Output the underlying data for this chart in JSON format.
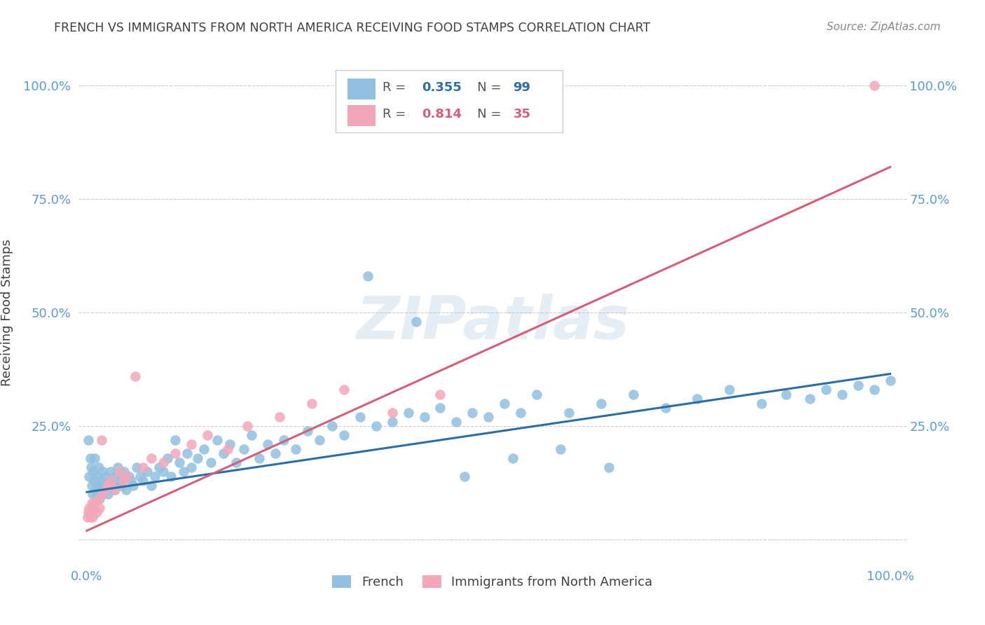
{
  "title": "FRENCH VS IMMIGRANTS FROM NORTH AMERICA RECEIVING FOOD STAMPS CORRELATION CHART",
  "source": "Source: ZipAtlas.com",
  "ylabel": "Receiving Food Stamps",
  "watermark": "ZIPatlas",
  "blue_R": 0.355,
  "blue_N": 99,
  "pink_R": 0.814,
  "pink_N": 35,
  "blue_color": "#92c0e0",
  "pink_color": "#f4a7b9",
  "blue_line_color": "#2e6da4",
  "pink_line_color": "#d45f7a",
  "axis_label_color": "#5b9bd5",
  "title_color": "#404040",
  "source_color": "#888888",
  "background_color": "#ffffff",
  "grid_color": "#cccccc",
  "x_ticks": [
    0.0,
    0.25,
    0.5,
    0.75,
    1.0
  ],
  "x_tick_labels": [
    "0.0%",
    "",
    "",
    "",
    "100.0%"
  ],
  "y_ticks": [
    0.0,
    0.25,
    0.5,
    0.75,
    1.0
  ],
  "y_tick_labels": [
    "",
    "25.0%",
    "50.0%",
    "75.0%",
    "100.0%"
  ],
  "blue_x": [
    0.002,
    0.003,
    0.004,
    0.005,
    0.006,
    0.007,
    0.008,
    0.009,
    0.01,
    0.011,
    0.012,
    0.013,
    0.014,
    0.015,
    0.016,
    0.017,
    0.018,
    0.02,
    0.022,
    0.024,
    0.026,
    0.028,
    0.03,
    0.032,
    0.034,
    0.036,
    0.038,
    0.04,
    0.043,
    0.046,
    0.049,
    0.052,
    0.055,
    0.058,
    0.062,
    0.066,
    0.07,
    0.075,
    0.08,
    0.085,
    0.09,
    0.095,
    0.1,
    0.105,
    0.11,
    0.115,
    0.12,
    0.125,
    0.13,
    0.138,
    0.146,
    0.154,
    0.162,
    0.17,
    0.178,
    0.186,
    0.195,
    0.205,
    0.215,
    0.225,
    0.235,
    0.245,
    0.26,
    0.275,
    0.29,
    0.305,
    0.32,
    0.34,
    0.36,
    0.38,
    0.4,
    0.42,
    0.44,
    0.46,
    0.48,
    0.5,
    0.52,
    0.54,
    0.56,
    0.6,
    0.64,
    0.68,
    0.72,
    0.76,
    0.8,
    0.84,
    0.87,
    0.9,
    0.92,
    0.94,
    0.96,
    0.98,
    1.0,
    0.35,
    0.41,
    0.47,
    0.53,
    0.59,
    0.65
  ],
  "blue_y": [
    0.22,
    0.14,
    0.18,
    0.16,
    0.12,
    0.1,
    0.15,
    0.13,
    0.18,
    0.11,
    0.1,
    0.14,
    0.12,
    0.16,
    0.09,
    0.13,
    0.11,
    0.15,
    0.12,
    0.14,
    0.1,
    0.13,
    0.15,
    0.12,
    0.11,
    0.14,
    0.16,
    0.13,
    0.12,
    0.15,
    0.11,
    0.14,
    0.13,
    0.12,
    0.16,
    0.14,
    0.13,
    0.15,
    0.12,
    0.14,
    0.16,
    0.15,
    0.18,
    0.14,
    0.22,
    0.17,
    0.15,
    0.19,
    0.16,
    0.18,
    0.2,
    0.17,
    0.22,
    0.19,
    0.21,
    0.17,
    0.2,
    0.23,
    0.18,
    0.21,
    0.19,
    0.22,
    0.2,
    0.24,
    0.22,
    0.25,
    0.23,
    0.27,
    0.25,
    0.26,
    0.28,
    0.27,
    0.29,
    0.26,
    0.28,
    0.27,
    0.3,
    0.28,
    0.32,
    0.28,
    0.3,
    0.32,
    0.29,
    0.31,
    0.33,
    0.3,
    0.32,
    0.31,
    0.33,
    0.32,
    0.34,
    0.33,
    0.35,
    0.58,
    0.48,
    0.14,
    0.18,
    0.2,
    0.16
  ],
  "pink_x": [
    0.001,
    0.002,
    0.003,
    0.004,
    0.005,
    0.006,
    0.007,
    0.008,
    0.01,
    0.012,
    0.014,
    0.016,
    0.018,
    0.02,
    0.025,
    0.03,
    0.035,
    0.04,
    0.045,
    0.05,
    0.06,
    0.07,
    0.08,
    0.095,
    0.11,
    0.13,
    0.15,
    0.175,
    0.2,
    0.24,
    0.28,
    0.32,
    0.38,
    0.44,
    0.98
  ],
  "pink_y": [
    0.05,
    0.06,
    0.07,
    0.05,
    0.06,
    0.08,
    0.05,
    0.07,
    0.08,
    0.06,
    0.09,
    0.07,
    0.22,
    0.1,
    0.12,
    0.13,
    0.11,
    0.15,
    0.13,
    0.14,
    0.36,
    0.16,
    0.18,
    0.17,
    0.19,
    0.21,
    0.23,
    0.2,
    0.25,
    0.27,
    0.3,
    0.33,
    0.28,
    0.32,
    1.0
  ],
  "blue_line_x": [
    0.0,
    1.0
  ],
  "blue_line_y": [
    0.105,
    0.365
  ],
  "pink_line_x": [
    0.0,
    1.0
  ],
  "pink_line_y": [
    0.02,
    0.82
  ]
}
